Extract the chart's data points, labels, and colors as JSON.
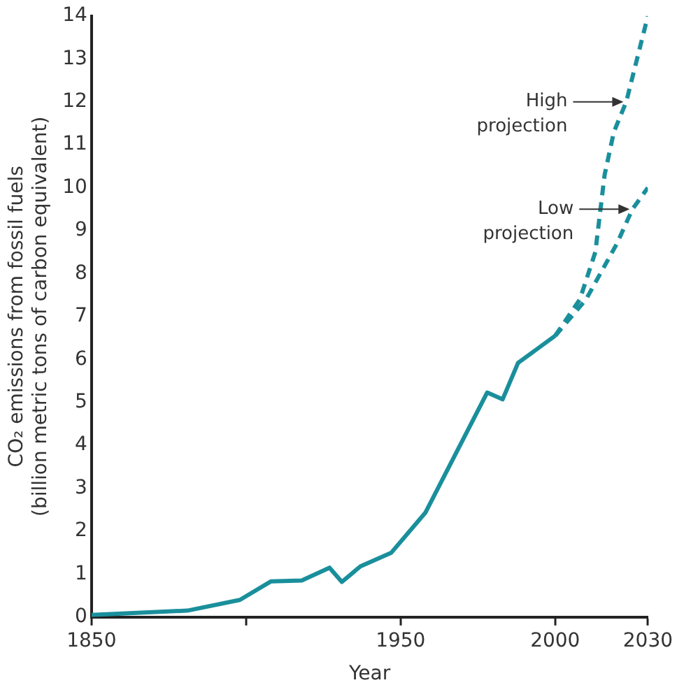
{
  "chart_data": {
    "type": "line",
    "xlabel": "Year",
    "ylabel": "CO₂ emissions from fossil fuels\n(billion metric tons of carbon equivalent)",
    "xlim": [
      1850,
      2030
    ],
    "xticks": [
      1850,
      {
        "value": 1900,
        "label": null
      },
      1950,
      2000,
      2030
    ],
    "ylim": [
      0,
      14
    ],
    "yticks": [
      0,
      1,
      2,
      3,
      4,
      5,
      6,
      7,
      8,
      9,
      10,
      11,
      12,
      13,
      14
    ],
    "grid": false,
    "legend": false,
    "marker": "none",
    "series": [
      {
        "color": "#1a8f9c",
        "line_style": "solid",
        "x": [
          1850,
          1881,
          1898,
          1908,
          1918,
          1927,
          1931,
          1937,
          1947,
          1958,
          1978,
          1983,
          1988,
          2000
        ],
        "values": [
          0.05,
          0.15,
          0.4,
          0.83,
          0.85,
          1.15,
          0.82,
          1.18,
          1.5,
          2.43,
          5.23,
          5.07,
          5.92,
          6.55
        ]
      },
      {
        "color": "#1a8f9c",
        "line_style": "dashed",
        "x": [
          2000,
          2008,
          2013,
          2016,
          2019,
          2023,
          2030
        ],
        "values": [
          6.55,
          7.4,
          8.5,
          10.3,
          11.3,
          12,
          14
        ]
      },
      {
        "color": "#1a8f9c",
        "line_style": "dashed",
        "x": [
          2000,
          2010,
          2020,
          2025,
          2030
        ],
        "values": [
          6.55,
          7.4,
          8.7,
          9.5,
          10
        ]
      }
    ],
    "annotations": [
      {
        "text": "High\nprojection",
        "x": 2023,
        "y": 12
      },
      {
        "text": "Low\nprojection",
        "x": 2025,
        "y": 9.5
      }
    ]
  }
}
